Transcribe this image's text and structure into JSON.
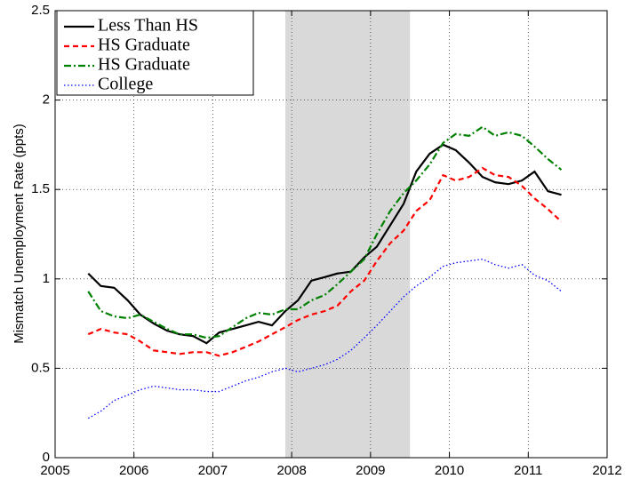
{
  "chart_data": {
    "type": "line",
    "ylabel": "Mismatch Unemployment Rate (ppts)",
    "x": [
      2005.42,
      2005.58,
      2005.75,
      2005.92,
      2006.08,
      2006.25,
      2006.42,
      2006.58,
      2006.75,
      2006.92,
      2007.08,
      2007.25,
      2007.42,
      2007.58,
      2007.75,
      2007.92,
      2008.08,
      2008.25,
      2008.42,
      2008.58,
      2008.75,
      2008.92,
      2009.08,
      2009.25,
      2009.42,
      2009.58,
      2009.75,
      2009.92,
      2010.08,
      2010.25,
      2010.42,
      2010.58,
      2010.75,
      2010.92,
      2011.08,
      2011.25,
      2011.42
    ],
    "series": [
      {
        "name": "Less Than HS",
        "color": "#000000",
        "dash": "solid",
        "values": [
          1.03,
          0.96,
          0.95,
          0.88,
          0.8,
          0.75,
          0.71,
          0.69,
          0.68,
          0.64,
          0.7,
          0.72,
          0.74,
          0.76,
          0.74,
          0.82,
          0.88,
          0.99,
          1.01,
          1.03,
          1.04,
          1.12,
          1.18,
          1.3,
          1.42,
          1.6,
          1.7,
          1.75,
          1.72,
          1.65,
          1.57,
          1.54,
          1.53,
          1.55,
          1.6,
          1.49,
          1.47
        ]
      },
      {
        "name": "HS Graduate",
        "color": "#ff0000",
        "dash": "dashed",
        "values": [
          0.69,
          0.72,
          0.7,
          0.69,
          0.65,
          0.6,
          0.59,
          0.58,
          0.59,
          0.59,
          0.57,
          0.59,
          0.62,
          0.65,
          0.69,
          0.73,
          0.77,
          0.8,
          0.82,
          0.85,
          0.93,
          0.99,
          1.1,
          1.2,
          1.27,
          1.38,
          1.44,
          1.58,
          1.55,
          1.57,
          1.62,
          1.58,
          1.57,
          1.52,
          1.45,
          1.39,
          1.32
        ]
      },
      {
        "name": "HS Graduate",
        "color": "#008000",
        "dash": "dashdot",
        "values": [
          0.93,
          0.82,
          0.79,
          0.78,
          0.8,
          0.76,
          0.72,
          0.69,
          0.69,
          0.67,
          0.68,
          0.73,
          0.78,
          0.81,
          0.8,
          0.83,
          0.83,
          0.88,
          0.91,
          0.97,
          1.04,
          1.11,
          1.25,
          1.38,
          1.48,
          1.55,
          1.64,
          1.76,
          1.81,
          1.8,
          1.85,
          1.8,
          1.82,
          1.8,
          1.74,
          1.67,
          1.61
        ]
      },
      {
        "name": "College",
        "color": "#0000ff",
        "dash": "dotted",
        "values": [
          0.22,
          0.26,
          0.32,
          0.35,
          0.38,
          0.4,
          0.39,
          0.38,
          0.38,
          0.37,
          0.37,
          0.4,
          0.43,
          0.45,
          0.48,
          0.5,
          0.48,
          0.5,
          0.52,
          0.55,
          0.6,
          0.67,
          0.74,
          0.82,
          0.9,
          0.96,
          1.01,
          1.07,
          1.09,
          1.1,
          1.11,
          1.08,
          1.06,
          1.08,
          1.02,
          0.99,
          0.93
        ]
      }
    ],
    "shaded_x_range": [
      2007.92,
      2009.5
    ],
    "xlim": [
      2005,
      2012
    ],
    "xticks": [
      2005,
      2006,
      2007,
      2008,
      2009,
      2010,
      2011,
      2012
    ],
    "ylim": [
      0,
      2.5
    ],
    "yticks": [
      0,
      0.5,
      1,
      1.5,
      2,
      2.5
    ],
    "grid": true,
    "legend": "upper-left"
  }
}
